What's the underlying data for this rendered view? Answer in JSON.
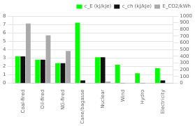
{
  "chart_data": {
    "type": "bar",
    "categories": [
      "Coal-fired",
      "Oil-fired",
      "NG-fired",
      "Cane/bagasse",
      "Nuclear",
      "Wind",
      "Hydro",
      "Electricity"
    ],
    "series": [
      {
        "name": "c_E (kJ/kJe)",
        "color": "#00ff00",
        "values": [
          3.2,
          2.8,
          2.4,
          7.2,
          3.1,
          2.2,
          1.2,
          1.8
        ]
      },
      {
        "name": "c_ch (kJ/kJe)",
        "color": "#111111",
        "values": [
          3.2,
          2.8,
          2.4,
          0.35,
          3.1,
          0.05,
          0.05,
          0.35
        ]
      },
      {
        "name": "E_CO2/kWh",
        "color": "#aaaaaa",
        "values": [
          7.1,
          5.7,
          3.85,
          0.0,
          0.2,
          0.0,
          0.0,
          0.0
        ]
      }
    ],
    "ylim": [
      0,
      8
    ],
    "yticks": [
      0,
      1,
      2,
      3,
      4,
      5,
      6,
      7,
      8
    ],
    "y2lim": [
      0,
      1000
    ],
    "y2ticks": [
      0,
      100,
      200,
      300,
      400,
      500,
      600,
      700,
      800,
      900,
      1000
    ],
    "grid": true,
    "legend": "upper right"
  }
}
